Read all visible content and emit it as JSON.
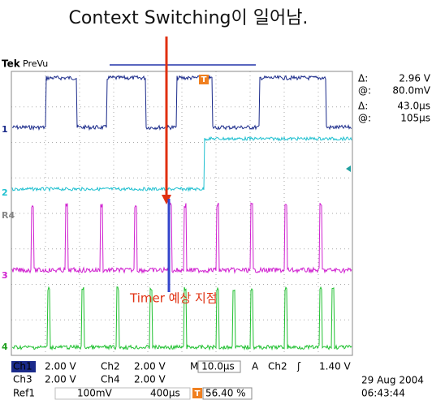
{
  "annotation": {
    "title": "Context Switching이 일어남.",
    "marker": "Timer 예상 지점"
  },
  "header": {
    "brand": "Tek",
    "mode": "PreVu",
    "trigger_marker": "T"
  },
  "readouts": [
    {
      "symbol": "Δ:",
      "value": "2.96 V"
    },
    {
      "symbol": "@:",
      "value": "80.0mV"
    },
    {
      "symbol": "Δ:",
      "value": "43.0µs"
    },
    {
      "symbol": "@:",
      "value": "105µs"
    }
  ],
  "channel_markers": [
    "1",
    "2",
    "R4",
    "3",
    "4"
  ],
  "status": {
    "row1": {
      "ch1": "Ch1",
      "ch1_scale": "2.00 V",
      "ch2": "Ch2",
      "ch2_scale": "2.00 V",
      "time_base": "M 10.0µs",
      "trigger_mode": "A",
      "trigger_source": "Ch2",
      "trigger_slope": "ʃ",
      "trigger_level": "1.40 V"
    },
    "row2": {
      "ch3": "Ch3",
      "ch3_scale": "2.00 V",
      "ch4": "Ch4",
      "ch4_scale": "2.00 V"
    },
    "row3": {
      "ref": "Ref1",
      "ref_scale": "100mV",
      "ref_time": "400µs",
      "trigger_pos_icon": "T",
      "trigger_pos": "56.40 %"
    },
    "date": "29 Aug 2004",
    "time": "06:43:44"
  }
}
